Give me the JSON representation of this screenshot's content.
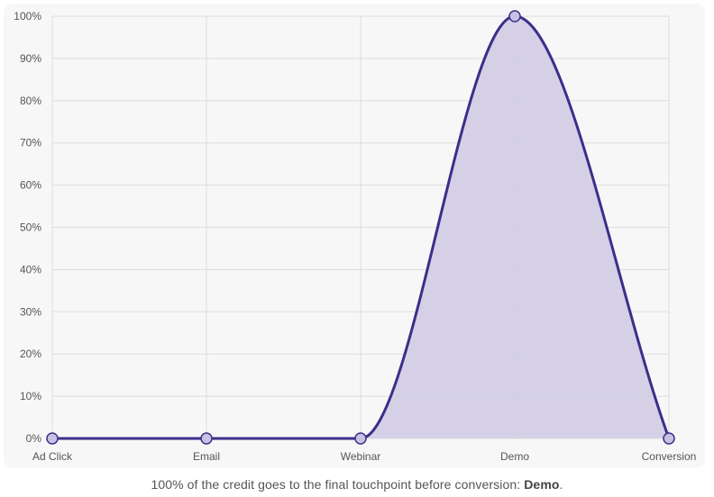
{
  "chart_data": {
    "type": "area",
    "categories": [
      "Ad Click",
      "Email",
      "Webinar",
      "Demo",
      "Conversion"
    ],
    "series": [
      {
        "values": [
          0,
          0,
          0,
          100,
          0
        ]
      }
    ],
    "ylim": [
      0,
      100
    ],
    "yticks": [
      "0%",
      "10%",
      "20%",
      "30%",
      "40%",
      "50%",
      "60%",
      "70%",
      "80%",
      "90%",
      "100%"
    ],
    "grid": true,
    "colors": {
      "line": "#3d2e8a",
      "fill": "#d3cde4",
      "point_fill": "#c9c1e2",
      "grid": "#dddddd",
      "tick_text": "#555555"
    }
  },
  "caption": {
    "prefix": "100% of the credit goes to the final touchpoint before conversion: ",
    "highlight": "Demo",
    "suffix": "."
  }
}
